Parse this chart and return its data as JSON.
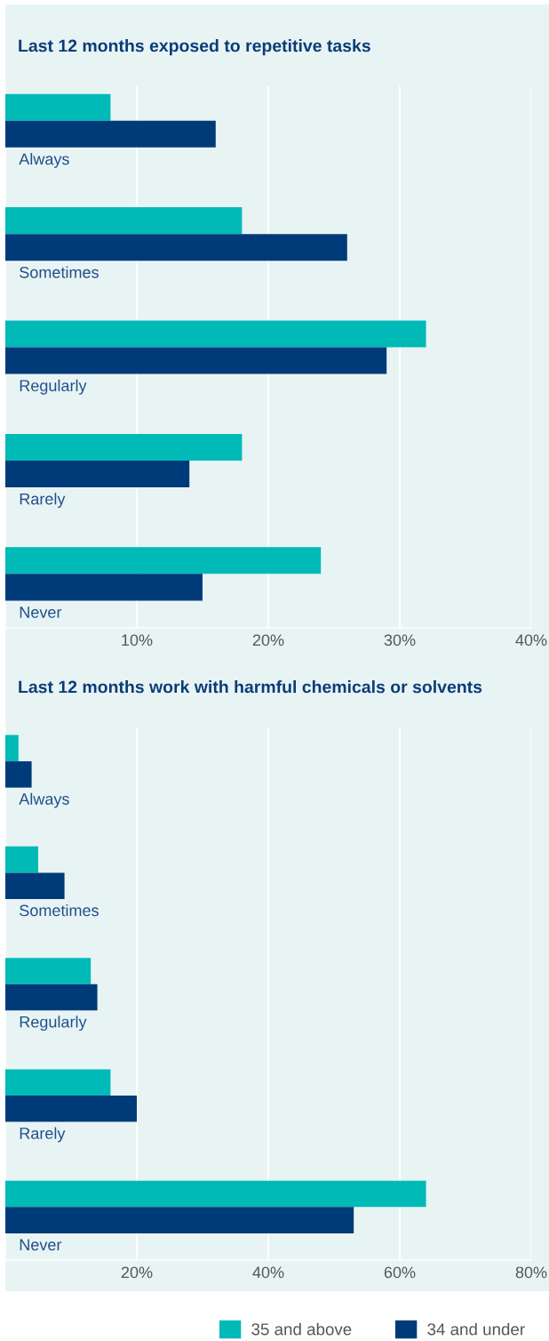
{
  "chart_data": [
    {
      "type": "bar",
      "orientation": "horizontal",
      "title": "Last 12 months exposed to repetitive tasks",
      "categories": [
        "Always",
        "Sometimes",
        "Regularly",
        "Rarely",
        "Never"
      ],
      "series": [
        {
          "color": "#00bab7",
          "values": [
            8,
            18,
            32,
            18,
            24
          ]
        },
        {
          "color": "#003b79",
          "values": [
            16,
            26,
            29,
            14,
            15
          ]
        }
      ],
      "xlim": [
        0,
        40
      ],
      "xticks": [
        {
          "value": 10,
          "label": "10%"
        },
        {
          "value": 20,
          "label": "20%"
        },
        {
          "value": 30,
          "label": "30%"
        },
        {
          "value": 40,
          "label": "40%"
        }
      ],
      "grid": "x"
    },
    {
      "type": "bar",
      "orientation": "horizontal",
      "title": "Last 12 months work with harmful chemicals or solvents",
      "categories": [
        "Always",
        "Sometimes",
        "Regularly",
        "Rarely",
        "Never"
      ],
      "series": [
        {
          "name": "35 and above",
          "color": "#00bab7",
          "values": [
            2,
            5,
            13,
            16,
            64
          ]
        },
        {
          "name": "34 and under",
          "color": "#003b79",
          "values": [
            4,
            9,
            14,
            20,
            53
          ]
        }
      ],
      "xlim": [
        0,
        80
      ],
      "xticks": [
        {
          "value": 20,
          "label": "20%"
        },
        {
          "value": 40,
          "label": "40%"
        },
        {
          "value": 60,
          "label": "60%"
        },
        {
          "value": 80,
          "label": "80%"
        }
      ],
      "grid": "x",
      "legend": "bottom"
    }
  ]
}
